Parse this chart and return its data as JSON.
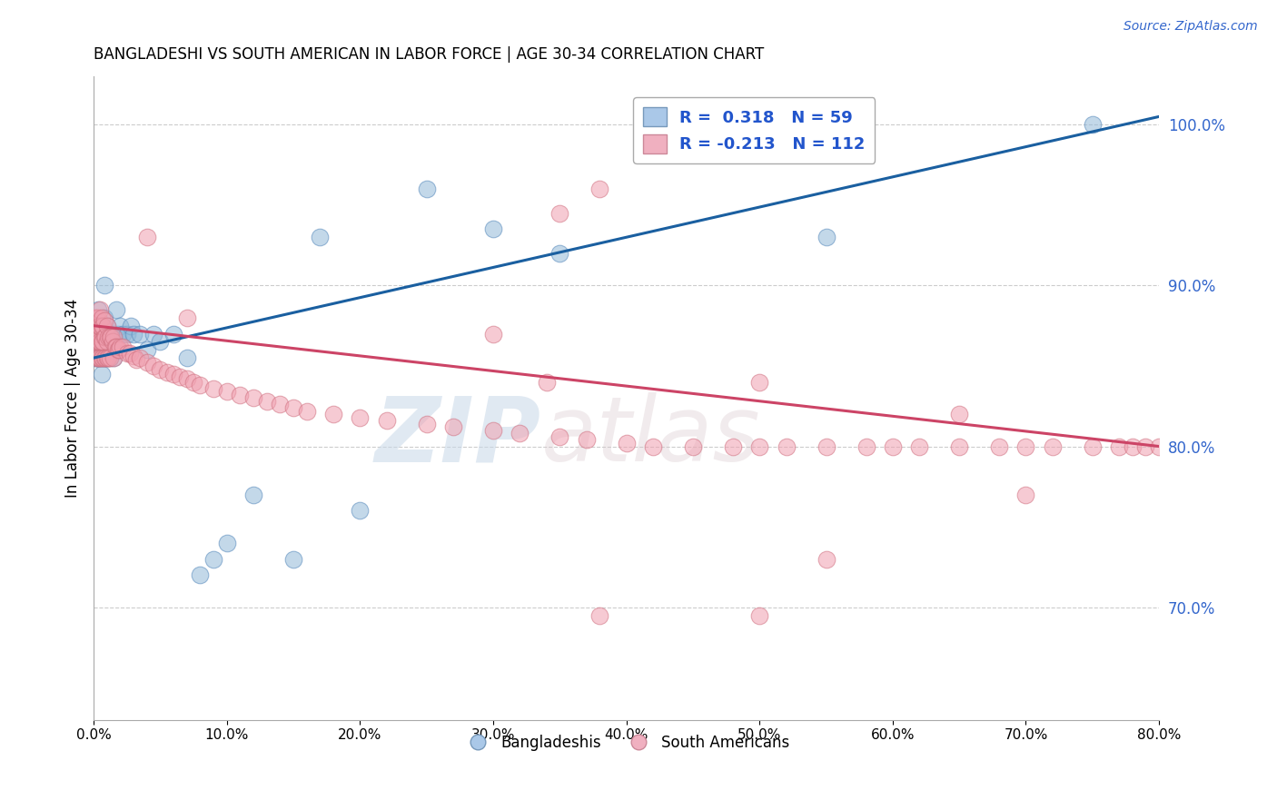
{
  "title": "BANGLADESHI VS SOUTH AMERICAN IN LABOR FORCE | AGE 30-34 CORRELATION CHART",
  "source": "Source: ZipAtlas.com",
  "ylabel": "In Labor Force | Age 30-34",
  "xlabel_ticks": [
    "0.0%",
    "10.0%",
    "20.0%",
    "30.0%",
    "40.0%",
    "50.0%",
    "60.0%",
    "70.0%",
    "80.0%"
  ],
  "xlabel_vals": [
    0.0,
    0.1,
    0.2,
    0.3,
    0.4,
    0.5,
    0.6,
    0.7,
    0.8
  ],
  "ylabel_right_ticks": [
    "70.0%",
    "80.0%",
    "90.0%",
    "100.0%"
  ],
  "ylabel_right_vals": [
    0.7,
    0.8,
    0.9,
    1.0
  ],
  "xmin": 0.0,
  "xmax": 0.8,
  "ymin": 0.63,
  "ymax": 1.03,
  "blue_color": "#92b8d8",
  "pink_color": "#f0a0b0",
  "blue_edge_color": "#5588bb",
  "pink_edge_color": "#d07080",
  "blue_line_color": "#1a5fa0",
  "pink_line_color": "#cc4466",
  "legend_blue": "Bangladeshis",
  "legend_pink": "South Americans",
  "watermark_zip": "ZIP",
  "watermark_atlas": "atlas",
  "blue_line_x0": 0.0,
  "blue_line_y0": 0.855,
  "blue_line_x1": 0.8,
  "blue_line_y1": 1.005,
  "pink_line_x0": 0.0,
  "pink_line_y0": 0.875,
  "pink_line_x1": 0.8,
  "pink_line_y1": 0.8,
  "blue_x": [
    0.001,
    0.001,
    0.001,
    0.002,
    0.002,
    0.002,
    0.003,
    0.003,
    0.003,
    0.004,
    0.004,
    0.004,
    0.005,
    0.005,
    0.005,
    0.006,
    0.006,
    0.006,
    0.006,
    0.007,
    0.007,
    0.008,
    0.008,
    0.009,
    0.009,
    0.01,
    0.01,
    0.01,
    0.012,
    0.012,
    0.013,
    0.014,
    0.015,
    0.015,
    0.017,
    0.018,
    0.02,
    0.022,
    0.025,
    0.028,
    0.03,
    0.035,
    0.04,
    0.045,
    0.05,
    0.06,
    0.07,
    0.08,
    0.09,
    0.1,
    0.12,
    0.15,
    0.17,
    0.2,
    0.25,
    0.3,
    0.35,
    0.55,
    0.75
  ],
  "blue_y": [
    0.855,
    0.86,
    0.875,
    0.855,
    0.86,
    0.875,
    0.855,
    0.87,
    0.885,
    0.855,
    0.86,
    0.875,
    0.855,
    0.86,
    0.875,
    0.845,
    0.855,
    0.86,
    0.875,
    0.855,
    0.87,
    0.88,
    0.9,
    0.855,
    0.87,
    0.855,
    0.86,
    0.875,
    0.855,
    0.87,
    0.87,
    0.865,
    0.855,
    0.87,
    0.885,
    0.87,
    0.875,
    0.87,
    0.87,
    0.875,
    0.87,
    0.87,
    0.86,
    0.87,
    0.865,
    0.87,
    0.855,
    0.72,
    0.73,
    0.74,
    0.77,
    0.73,
    0.93,
    0.76,
    0.96,
    0.935,
    0.92,
    0.93,
    1.0
  ],
  "pink_x": [
    0.001,
    0.001,
    0.001,
    0.001,
    0.002,
    0.002,
    0.002,
    0.002,
    0.003,
    0.003,
    0.003,
    0.003,
    0.003,
    0.004,
    0.004,
    0.004,
    0.004,
    0.005,
    0.005,
    0.005,
    0.005,
    0.006,
    0.006,
    0.006,
    0.006,
    0.007,
    0.007,
    0.007,
    0.008,
    0.008,
    0.008,
    0.009,
    0.009,
    0.01,
    0.01,
    0.01,
    0.011,
    0.011,
    0.012,
    0.012,
    0.013,
    0.014,
    0.015,
    0.015,
    0.016,
    0.017,
    0.018,
    0.019,
    0.02,
    0.022,
    0.025,
    0.027,
    0.03,
    0.032,
    0.035,
    0.04,
    0.045,
    0.05,
    0.055,
    0.06,
    0.065,
    0.07,
    0.075,
    0.08,
    0.09,
    0.1,
    0.11,
    0.12,
    0.13,
    0.14,
    0.15,
    0.16,
    0.18,
    0.2,
    0.22,
    0.25,
    0.27,
    0.3,
    0.32,
    0.35,
    0.37,
    0.4,
    0.42,
    0.45,
    0.48,
    0.5,
    0.52,
    0.55,
    0.58,
    0.6,
    0.62,
    0.65,
    0.68,
    0.7,
    0.72,
    0.75,
    0.77,
    0.78,
    0.79,
    0.8,
    0.35,
    0.38,
    0.04,
    0.07,
    0.34,
    0.3,
    0.5,
    0.55,
    0.65,
    0.7,
    0.5,
    0.38
  ],
  "pink_y": [
    0.86,
    0.87,
    0.875,
    0.88,
    0.855,
    0.865,
    0.87,
    0.88,
    0.855,
    0.865,
    0.87,
    0.875,
    0.88,
    0.855,
    0.865,
    0.87,
    0.875,
    0.855,
    0.865,
    0.875,
    0.885,
    0.855,
    0.865,
    0.875,
    0.88,
    0.855,
    0.865,
    0.875,
    0.855,
    0.868,
    0.878,
    0.855,
    0.868,
    0.855,
    0.865,
    0.875,
    0.855,
    0.868,
    0.855,
    0.868,
    0.868,
    0.865,
    0.855,
    0.868,
    0.862,
    0.862,
    0.86,
    0.86,
    0.862,
    0.862,
    0.858,
    0.858,
    0.856,
    0.854,
    0.855,
    0.852,
    0.85,
    0.848,
    0.846,
    0.845,
    0.843,
    0.842,
    0.84,
    0.838,
    0.836,
    0.834,
    0.832,
    0.83,
    0.828,
    0.826,
    0.824,
    0.822,
    0.82,
    0.818,
    0.816,
    0.814,
    0.812,
    0.81,
    0.808,
    0.806,
    0.804,
    0.802,
    0.8,
    0.8,
    0.8,
    0.8,
    0.8,
    0.8,
    0.8,
    0.8,
    0.8,
    0.8,
    0.8,
    0.8,
    0.8,
    0.8,
    0.8,
    0.8,
    0.8,
    0.8,
    0.945,
    0.96,
    0.93,
    0.88,
    0.84,
    0.87,
    0.84,
    0.73,
    0.82,
    0.77,
    0.695,
    0.695
  ]
}
